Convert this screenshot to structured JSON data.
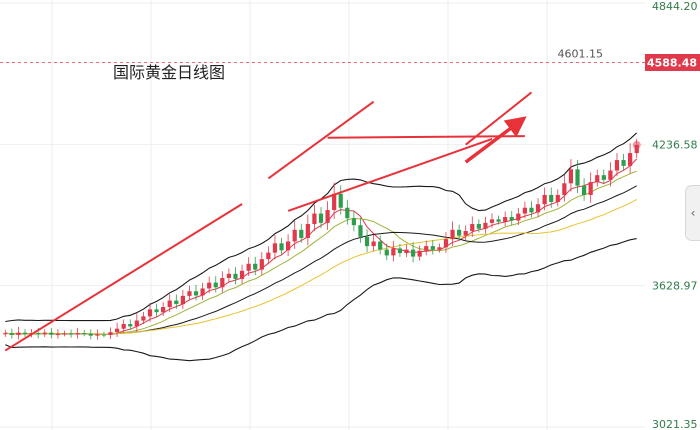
{
  "chart_data": {
    "type": "candlestick",
    "title": "国际黄金日线图",
    "y_ticks": [
      "4844.20",
      "4236.58",
      "3628.97",
      "3021.35"
    ],
    "y_tick_values": [
      4844.2,
      4236.58,
      3628.97,
      3021.35
    ],
    "ylim": [
      3021.35,
      4844.2
    ],
    "current_price": {
      "label": "4588.48",
      "value": 4588.48
    },
    "high_marker": {
      "label": "4601.15",
      "value": 4601.15
    },
    "grid": true,
    "series": [
      {
        "name": "",
        "type": "candles",
        "up_color": "#e0394b",
        "down_color": "#2e9e4e",
        "start": 3420,
        "steps": [
          5,
          -8,
          10,
          -6,
          4,
          -5,
          7,
          -9,
          3,
          2,
          -4,
          6,
          -3,
          -8,
          5,
          -2,
          12,
          15,
          20,
          -10,
          25,
          18,
          30,
          -12,
          22,
          28,
          -15,
          35,
          20,
          -18,
          30,
          25,
          -20,
          40,
          18,
          -22,
          35,
          30,
          -25,
          45,
          28,
          40,
          -30,
          38,
          50,
          -35,
          60,
          45,
          -40,
          55,
          70,
          -60,
          -45,
          -30,
          -50,
          -40,
          20,
          -35,
          -25,
          30,
          -20,
          15,
          -30,
          25,
          20,
          -15,
          10,
          35,
          40,
          -25,
          20,
          30,
          -20,
          25,
          15,
          -10,
          20,
          -15,
          30,
          25,
          -20,
          35,
          40,
          -30,
          30,
          50,
          60,
          -70,
          -40,
          55,
          30,
          -20,
          40,
          45,
          -25,
          55,
          35
        ]
      },
      {
        "name": "",
        "type": "bollinger_upper",
        "color": "#1a1a1a"
      },
      {
        "name": "",
        "type": "bollinger_lower",
        "color": "#1a1a1a"
      },
      {
        "name": "",
        "type": "ma",
        "period": 5,
        "color": "#e0394b"
      },
      {
        "name": "",
        "type": "ma",
        "period": 10,
        "color": "#9fb33a"
      },
      {
        "name": "",
        "type": "ma",
        "period": 20,
        "color": "#1a1a1a"
      },
      {
        "name": "",
        "type": "ma",
        "period": 30,
        "color": "#e8c332"
      }
    ],
    "annotations": [
      {
        "type": "trendline",
        "color": "#e8323a",
        "from": [
          0,
          3350
        ],
        "to": [
          36,
          3980
        ]
      },
      {
        "type": "trendline",
        "color": "#e8323a",
        "from": [
          40,
          4090
        ],
        "to": [
          56,
          4420
        ]
      },
      {
        "type": "trendline",
        "color": "#e8323a",
        "from": [
          43,
          3950
        ],
        "to": [
          74,
          4260
        ]
      },
      {
        "type": "trendline",
        "color": "#e8323a",
        "from": [
          49,
          4265
        ],
        "to": [
          79,
          4272
        ]
      },
      {
        "type": "trendline",
        "color": "#e8323a",
        "from": [
          70,
          4235
        ],
        "to": [
          80,
          4460
        ]
      },
      {
        "type": "arrow",
        "color": "#e8323a",
        "from": [
          70,
          4160
        ],
        "to": [
          78,
          4330
        ]
      }
    ]
  },
  "ui": {
    "side_tab_icon": "‹"
  }
}
